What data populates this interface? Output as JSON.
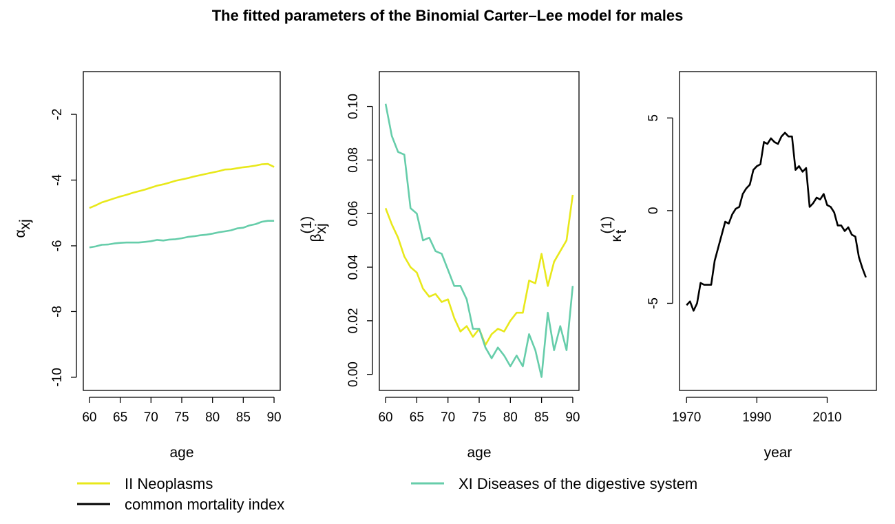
{
  "title": "The fitted parameters of the Binomial Carter–Lee model for males",
  "colors": {
    "neoplasms": "#E8E81A",
    "digestive": "#66CDAA",
    "common": "#000000"
  },
  "legend": [
    {
      "label": "II Neoplasms",
      "color": "#E8E81A"
    },
    {
      "label": "common mortality index",
      "color": "#000000"
    },
    {
      "label": "XI Diseases of the digestive system",
      "color": "#66CDAA"
    }
  ],
  "chart_data": [
    {
      "type": "line",
      "xlabel": "age",
      "ylabel": {
        "symbol": "α",
        "sub": "xj",
        "sup": ""
      },
      "xlim": [
        59,
        91
      ],
      "ylim": [
        -10.4,
        -0.7
      ],
      "xticks": [
        60,
        65,
        70,
        75,
        80,
        85,
        90
      ],
      "yticks": [
        -10,
        -8,
        -6,
        -4,
        -2
      ],
      "x": [
        60,
        61,
        62,
        63,
        64,
        65,
        66,
        67,
        68,
        69,
        70,
        71,
        72,
        73,
        74,
        75,
        76,
        77,
        78,
        79,
        80,
        81,
        82,
        83,
        84,
        85,
        86,
        87,
        88,
        89,
        90
      ],
      "series": [
        {
          "color": "#E8E81A",
          "values": [
            -4.85,
            -4.77,
            -4.68,
            -4.62,
            -4.56,
            -4.5,
            -4.45,
            -4.39,
            -4.34,
            -4.29,
            -4.23,
            -4.17,
            -4.13,
            -4.08,
            -4.02,
            -3.98,
            -3.94,
            -3.89,
            -3.85,
            -3.81,
            -3.77,
            -3.73,
            -3.68,
            -3.67,
            -3.64,
            -3.61,
            -3.59,
            -3.56,
            -3.52,
            -3.51,
            -3.6
          ]
        },
        {
          "color": "#66CDAA",
          "values": [
            -6.05,
            -6.02,
            -5.97,
            -5.96,
            -5.93,
            -5.91,
            -5.9,
            -5.9,
            -5.9,
            -5.88,
            -5.86,
            -5.82,
            -5.84,
            -5.81,
            -5.8,
            -5.77,
            -5.73,
            -5.71,
            -5.68,
            -5.66,
            -5.63,
            -5.59,
            -5.56,
            -5.53,
            -5.47,
            -5.45,
            -5.38,
            -5.34,
            -5.27,
            -5.24,
            -5.24
          ]
        }
      ]
    },
    {
      "type": "line",
      "xlabel": "age",
      "ylabel": {
        "symbol": "β",
        "sub": "xj",
        "sup": "(1)"
      },
      "xlim": [
        59,
        91
      ],
      "ylim": [
        -0.006,
        0.113
      ],
      "xticks": [
        60,
        65,
        70,
        75,
        80,
        85,
        90
      ],
      "yticks": [
        0.0,
        0.02,
        0.04,
        0.06,
        0.08,
        0.1
      ],
      "ytick_labels": [
        "0.00",
        "0.02",
        "0.04",
        "0.06",
        "0.08",
        "0.10"
      ],
      "x": [
        60,
        61,
        62,
        63,
        64,
        65,
        66,
        67,
        68,
        69,
        70,
        71,
        72,
        73,
        74,
        75,
        76,
        77,
        78,
        79,
        80,
        81,
        82,
        83,
        84,
        85,
        86,
        87,
        88,
        89,
        90
      ],
      "series": [
        {
          "color": "#E8E81A",
          "values": [
            0.062,
            0.056,
            0.051,
            0.044,
            0.04,
            0.038,
            0.032,
            0.029,
            0.03,
            0.027,
            0.028,
            0.021,
            0.016,
            0.018,
            0.014,
            0.017,
            0.011,
            0.015,
            0.017,
            0.016,
            0.02,
            0.023,
            0.023,
            0.035,
            0.034,
            0.045,
            0.033,
            0.042,
            0.046,
            0.05,
            0.067
          ]
        },
        {
          "color": "#66CDAA",
          "values": [
            0.101,
            0.089,
            0.083,
            0.082,
            0.062,
            0.06,
            0.05,
            0.051,
            0.046,
            0.045,
            0.039,
            0.033,
            0.033,
            0.028,
            0.017,
            0.017,
            0.01,
            0.006,
            0.01,
            0.007,
            0.003,
            0.007,
            0.003,
            0.015,
            0.009,
            -0.001,
            0.023,
            0.009,
            0.018,
            0.009,
            0.033
          ]
        }
      ]
    },
    {
      "type": "line",
      "xlabel": "year",
      "ylabel": {
        "symbol": "κ",
        "sub": "t",
        "sup": "(1)"
      },
      "xlim": [
        1968,
        2024
      ],
      "ylim": [
        -9.7,
        7.5
      ],
      "xticks": [
        1970,
        1990,
        2010
      ],
      "yticks": [
        -5,
        0,
        5
      ],
      "x": [
        1970,
        1971,
        1972,
        1973,
        1974,
        1975,
        1976,
        1977,
        1978,
        1979,
        1980,
        1981,
        1982,
        1983,
        1984,
        1985,
        1986,
        1987,
        1988,
        1989,
        1990,
        1991,
        1992,
        1993,
        1994,
        1995,
        1996,
        1997,
        1998,
        1999,
        2000,
        2001,
        2002,
        2003,
        2004,
        2005,
        2006,
        2007,
        2008,
        2009,
        2010,
        2011,
        2012,
        2013,
        2014,
        2015,
        2016,
        2017,
        2018,
        2019,
        2020,
        2021
      ],
      "series": [
        {
          "color": "#000000",
          "values": [
            -5.1,
            -4.9,
            -5.4,
            -5.0,
            -3.9,
            -4.0,
            -4.0,
            -4.0,
            -2.7,
            -2.0,
            -1.3,
            -0.6,
            -0.7,
            -0.2,
            0.1,
            0.2,
            0.9,
            1.2,
            1.4,
            2.2,
            2.4,
            2.5,
            3.7,
            3.6,
            3.9,
            3.7,
            3.6,
            4.0,
            4.2,
            4.0,
            4.0,
            2.2,
            2.4,
            2.1,
            2.3,
            0.2,
            0.4,
            0.7,
            0.6,
            0.9,
            0.3,
            0.2,
            -0.1,
            -0.8,
            -0.8,
            -1.1,
            -0.9,
            -1.3,
            -1.4,
            -2.5,
            -3.1,
            -3.6
          ]
        }
      ]
    }
  ]
}
